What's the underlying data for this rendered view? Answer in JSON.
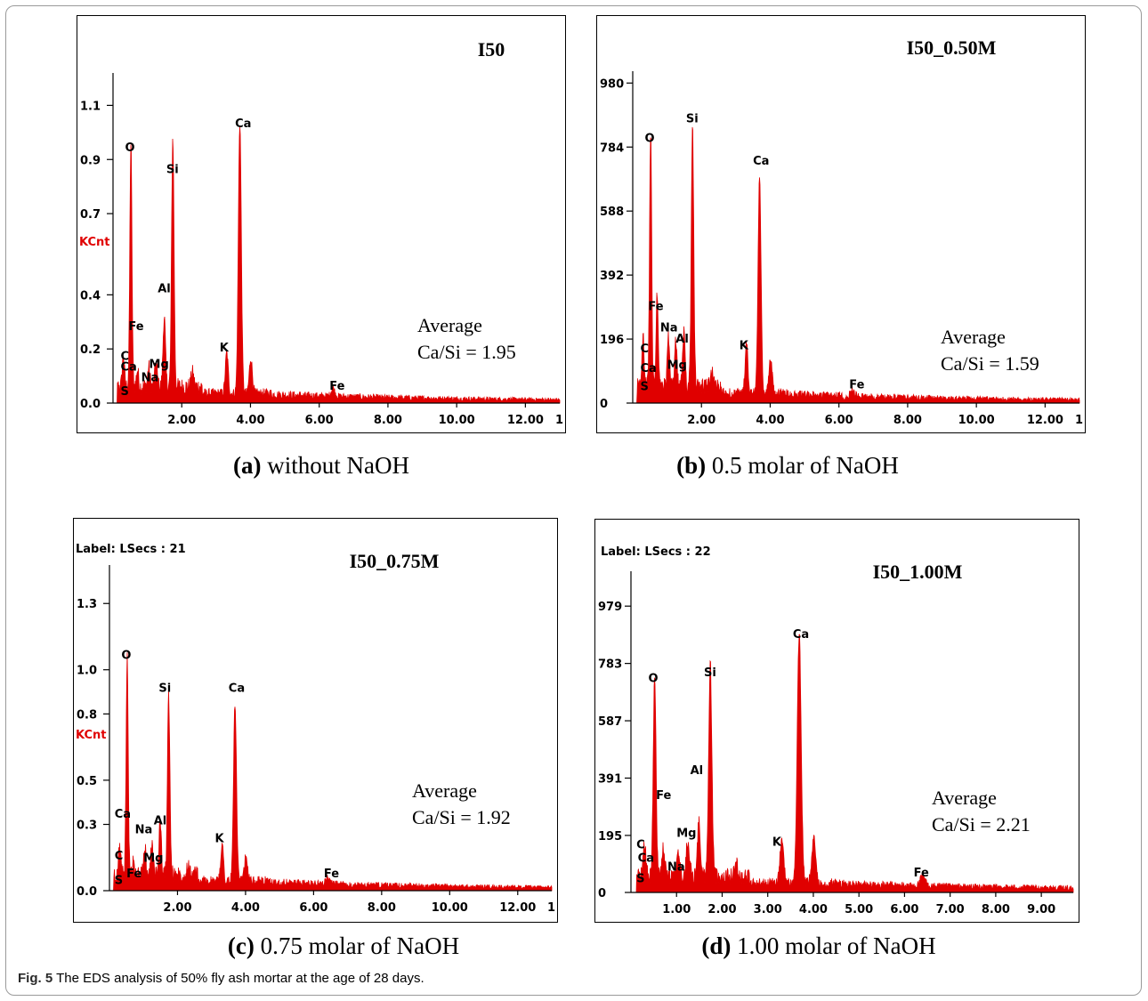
{
  "figure_caption": {
    "label": "Fig. 5",
    "text": "The EDS analysis of 50% fly ash mortar at the age of 28 days."
  },
  "colors": {
    "spectrum": "#e00000",
    "axis": "#000000"
  },
  "chart_data": [
    {
      "type": "area",
      "title": "I50",
      "subcaption": {
        "label": "(a)",
        "text": "without NaOH"
      },
      "ylabel": "KCnt",
      "header": "",
      "average_label": "Average",
      "average_value": "Ca/Si = 1.95",
      "xlim": [
        0,
        13.0
      ],
      "ylim": [
        0,
        1.2
      ],
      "xticks": [
        2,
        4,
        6,
        8,
        10,
        12
      ],
      "xtick_labels": [
        "2.00",
        "4.00",
        "6.00",
        "8.00",
        "10.00",
        "12.00"
      ],
      "x_edge_label": "1",
      "yticks": [
        0,
        0.2,
        0.4,
        0.7,
        0.9,
        1.1
      ],
      "ytick_labels": [
        "0.0",
        "0.2",
        "0.4",
        "0.7",
        "0.9",
        "1.1"
      ],
      "peaks": [
        {
          "x": 0.3,
          "y": 0.12
        },
        {
          "x": 0.52,
          "y": 0.9
        },
        {
          "x": 0.71,
          "y": 0.06
        },
        {
          "x": 1.04,
          "y": 0.07
        },
        {
          "x": 1.25,
          "y": 0.09
        },
        {
          "x": 1.49,
          "y": 0.26
        },
        {
          "x": 1.74,
          "y": 0.92
        },
        {
          "x": 2.31,
          "y": 0.05
        },
        {
          "x": 3.31,
          "y": 0.15
        },
        {
          "x": 3.69,
          "y": 1.0
        },
        {
          "x": 4.01,
          "y": 0.13
        },
        {
          "x": 6.4,
          "y": 0.03
        }
      ],
      "labels": [
        {
          "text": "O",
          "x": 0.35,
          "y": 0.93
        },
        {
          "text": "Si",
          "x": 1.55,
          "y": 0.85
        },
        {
          "text": "Ca",
          "x": 3.55,
          "y": 1.02
        },
        {
          "text": "Al",
          "x": 1.3,
          "y": 0.41
        },
        {
          "text": "Fe",
          "x": 0.45,
          "y": 0.27
        },
        {
          "text": "K",
          "x": 3.1,
          "y": 0.19
        },
        {
          "text": "C",
          "x": 0.22,
          "y": 0.16
        },
        {
          "text": "Ca",
          "x": 0.22,
          "y": 0.12
        },
        {
          "text": "Mg",
          "x": 1.05,
          "y": 0.13
        },
        {
          "text": "Na",
          "x": 0.82,
          "y": 0.08
        },
        {
          "text": "S",
          "x": 0.22,
          "y": 0.03
        },
        {
          "text": "Fe",
          "x": 6.3,
          "y": 0.05
        }
      ]
    },
    {
      "type": "area",
      "title": "I50_0.50M",
      "subcaption": {
        "label": "(b)",
        "text": "0.5 molar of NaOH"
      },
      "ylabel": "",
      "header": "",
      "average_label": "Average",
      "average_value": "Ca/Si = 1.59",
      "xlim": [
        0,
        13.0
      ],
      "ylim": [
        0,
        1000
      ],
      "xticks": [
        2,
        4,
        6,
        8,
        10,
        12
      ],
      "xtick_labels": [
        "2.00",
        "4.00",
        "6.00",
        "8.00",
        "10.00",
        "12.00"
      ],
      "x_edge_label": "1",
      "yticks": [
        0,
        196,
        392,
        588,
        784,
        980
      ],
      "ytick_labels": [
        "0",
        "196",
        "392",
        "588",
        "784",
        "980"
      ],
      "peaks": [
        {
          "x": 0.3,
          "y": 150
        },
        {
          "x": 0.52,
          "y": 780
        },
        {
          "x": 0.71,
          "y": 280
        },
        {
          "x": 1.04,
          "y": 150
        },
        {
          "x": 1.25,
          "y": 140
        },
        {
          "x": 1.49,
          "y": 180
        },
        {
          "x": 1.74,
          "y": 800
        },
        {
          "x": 2.31,
          "y": 50
        },
        {
          "x": 3.31,
          "y": 150
        },
        {
          "x": 3.69,
          "y": 660
        },
        {
          "x": 4.01,
          "y": 110
        },
        {
          "x": 6.4,
          "y": 25
        }
      ],
      "labels": [
        {
          "text": "O",
          "x": 0.35,
          "y": 800
        },
        {
          "text": "Si",
          "x": 1.55,
          "y": 860
        },
        {
          "text": "Ca",
          "x": 3.5,
          "y": 730
        },
        {
          "text": "Fe",
          "x": 0.45,
          "y": 285
        },
        {
          "text": "Na",
          "x": 0.8,
          "y": 220
        },
        {
          "text": "Al",
          "x": 1.25,
          "y": 185
        },
        {
          "text": "K",
          "x": 3.1,
          "y": 165
        },
        {
          "text": "C",
          "x": 0.22,
          "y": 155
        },
        {
          "text": "Mg",
          "x": 1.0,
          "y": 105
        },
        {
          "text": "Ca",
          "x": 0.22,
          "y": 95
        },
        {
          "text": "S",
          "x": 0.22,
          "y": 40
        },
        {
          "text": "Fe",
          "x": 6.3,
          "y": 45
        }
      ]
    },
    {
      "type": "area",
      "title": "I50_0.75M",
      "subcaption": {
        "label": "(c)",
        "text": "0.75 molar of NaOH"
      },
      "ylabel": "KCnt",
      "header": "Label:  LSecs : 21",
      "average_label": "Average",
      "average_value": "Ca/Si = 1.92",
      "xlim": [
        0,
        13.0
      ],
      "ylim": [
        0,
        1.45
      ],
      "xticks": [
        2,
        4,
        6,
        8,
        10,
        12
      ],
      "xtick_labels": [
        "2.00",
        "4.00",
        "6.00",
        "8.00",
        "10.00",
        "12.00"
      ],
      "x_edge_label": "1",
      "yticks": [
        0,
        0.3,
        0.5,
        0.8,
        1.0,
        1.3
      ],
      "ytick_labels": [
        "0.0",
        "0.3",
        "0.5",
        "0.8",
        "1.0",
        "1.3"
      ],
      "peaks": [
        {
          "x": 0.3,
          "y": 0.13
        },
        {
          "x": 0.52,
          "y": 0.98
        },
        {
          "x": 0.71,
          "y": 0.07
        },
        {
          "x": 1.04,
          "y": 0.12
        },
        {
          "x": 1.25,
          "y": 0.14
        },
        {
          "x": 1.49,
          "y": 0.25
        },
        {
          "x": 1.74,
          "y": 0.81
        },
        {
          "x": 2.31,
          "y": 0.05
        },
        {
          "x": 3.31,
          "y": 0.17
        },
        {
          "x": 3.69,
          "y": 0.81
        },
        {
          "x": 4.01,
          "y": 0.11
        },
        {
          "x": 6.4,
          "y": 0.03
        }
      ],
      "labels": [
        {
          "text": "O",
          "x": 0.35,
          "y": 1.05
        },
        {
          "text": "Si",
          "x": 1.45,
          "y": 0.9
        },
        {
          "text": "Ca",
          "x": 3.5,
          "y": 0.9
        },
        {
          "text": "Ca",
          "x": 0.15,
          "y": 0.33
        },
        {
          "text": "Na",
          "x": 0.75,
          "y": 0.26
        },
        {
          "text": "Al",
          "x": 1.3,
          "y": 0.3
        },
        {
          "text": "K",
          "x": 3.1,
          "y": 0.22
        },
        {
          "text": "C",
          "x": 0.15,
          "y": 0.14
        },
        {
          "text": "Mg",
          "x": 1.0,
          "y": 0.13
        },
        {
          "text": "Fe",
          "x": 0.5,
          "y": 0.06
        },
        {
          "text": "S",
          "x": 0.15,
          "y": 0.03
        },
        {
          "text": "Fe",
          "x": 6.3,
          "y": 0.06
        }
      ]
    },
    {
      "type": "area",
      "title": "I50_1.00M",
      "subcaption": {
        "label": "(d)",
        "text": "1.00 molar of NaOH"
      },
      "ylabel": "",
      "header": "Label:  LSecs : 22",
      "average_label": "Average",
      "average_value": "Ca/Si = 2.21",
      "xlim": [
        0,
        9.7
      ],
      "ylim": [
        0,
        1080
      ],
      "xticks": [
        1,
        2,
        3,
        4,
        5,
        6,
        7,
        8,
        9
      ],
      "xtick_labels": [
        "1.00",
        "2.00",
        "3.00",
        "4.00",
        "5.00",
        "6.00",
        "7.00",
        "8.00",
        "9.00"
      ],
      "x_edge_label": "",
      "yticks": [
        0,
        195,
        391,
        587,
        783,
        979
      ],
      "ytick_labels": [
        "0",
        "195",
        "391",
        "587",
        "783",
        "979"
      ],
      "peaks": [
        {
          "x": 0.3,
          "y": 110
        },
        {
          "x": 0.52,
          "y": 700
        },
        {
          "x": 0.71,
          "y": 90
        },
        {
          "x": 1.04,
          "y": 70
        },
        {
          "x": 1.25,
          "y": 130
        },
        {
          "x": 1.49,
          "y": 180
        },
        {
          "x": 1.74,
          "y": 720
        },
        {
          "x": 2.31,
          "y": 40
        },
        {
          "x": 3.31,
          "y": 150
        },
        {
          "x": 3.69,
          "y": 850
        },
        {
          "x": 4.01,
          "y": 150
        },
        {
          "x": 6.4,
          "y": 35
        }
      ],
      "labels": [
        {
          "text": "Ca",
          "x": 3.55,
          "y": 870
        },
        {
          "text": "Si",
          "x": 1.6,
          "y": 740
        },
        {
          "text": "O",
          "x": 0.38,
          "y": 720
        },
        {
          "text": "Al",
          "x": 1.3,
          "y": 405
        },
        {
          "text": "Fe",
          "x": 0.55,
          "y": 320
        },
        {
          "text": "Mg",
          "x": 1.0,
          "y": 190
        },
        {
          "text": "K",
          "x": 3.1,
          "y": 160
        },
        {
          "text": "C",
          "x": 0.12,
          "y": 150
        },
        {
          "text": "Ca",
          "x": 0.15,
          "y": 105
        },
        {
          "text": "Na",
          "x": 0.8,
          "y": 75
        },
        {
          "text": "S",
          "x": 0.12,
          "y": 35
        },
        {
          "text": "Fe",
          "x": 6.2,
          "y": 55
        }
      ]
    }
  ]
}
